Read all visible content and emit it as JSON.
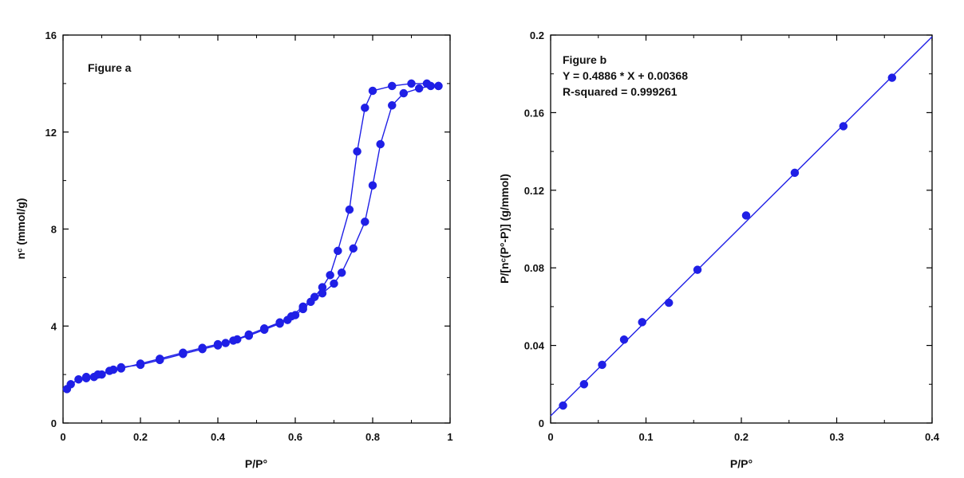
{
  "colors": {
    "series": "#1f1fe6",
    "axis": "#000000",
    "background": "#ffffff"
  },
  "chart_data": [
    {
      "type": "scatter",
      "panel": "Figure a",
      "title": "",
      "xlabel": "P/P°",
      "ylabel": "nᶜ (mmol/g)",
      "xlim": [
        0,
        1
      ],
      "ylim": [
        0,
        16
      ],
      "x_ticks": [
        0,
        0.2,
        0.4,
        0.6,
        0.8,
        1
      ],
      "x_tick_labels": [
        "0",
        "0.2",
        "0.4",
        "0.6",
        "0.8",
        "1"
      ],
      "y_ticks": [
        0,
        4,
        8,
        12,
        16
      ],
      "y_tick_labels": [
        "0",
        "4",
        "8",
        "12",
        "16"
      ],
      "grid": false,
      "annotations": [
        "Figure a"
      ],
      "series": [
        {
          "role": "adsorption",
          "marker": "filled-circle",
          "line": true,
          "x": [
            0.01,
            0.02,
            0.04,
            0.06,
            0.08,
            0.1,
            0.13,
            0.15,
            0.2,
            0.25,
            0.31,
            0.36,
            0.4,
            0.42,
            0.45,
            0.48,
            0.52,
            0.56,
            0.58,
            0.6,
            0.62,
            0.64,
            0.67,
            0.7,
            0.72,
            0.75,
            0.78,
            0.8,
            0.82,
            0.85,
            0.88,
            0.92,
            0.95,
            0.97
          ],
          "y": [
            1.4,
            1.6,
            1.8,
            1.9,
            1.9,
            2.0,
            2.2,
            2.3,
            2.4,
            2.6,
            2.85,
            3.05,
            3.2,
            3.3,
            3.45,
            3.6,
            3.85,
            4.1,
            4.25,
            4.45,
            4.7,
            5.0,
            5.35,
            5.75,
            6.2,
            7.2,
            8.3,
            9.8,
            11.5,
            13.1,
            13.6,
            13.8,
            13.9,
            13.9
          ]
        },
        {
          "role": "desorption",
          "marker": "filled-circle",
          "line": true,
          "x": [
            0.97,
            0.94,
            0.9,
            0.85,
            0.8,
            0.78,
            0.76,
            0.74,
            0.71,
            0.69,
            0.67,
            0.65,
            0.62,
            0.59,
            0.56,
            0.52,
            0.48,
            0.44,
            0.4,
            0.36,
            0.31,
            0.25,
            0.2,
            0.15,
            0.12,
            0.09,
            0.06
          ],
          "y": [
            13.9,
            14.0,
            14.0,
            13.9,
            13.7,
            13.0,
            11.2,
            8.8,
            7.1,
            6.1,
            5.6,
            5.2,
            4.8,
            4.4,
            4.15,
            3.9,
            3.65,
            3.4,
            3.25,
            3.1,
            2.9,
            2.65,
            2.45,
            2.25,
            2.15,
            2.0,
            1.85
          ]
        }
      ]
    },
    {
      "type": "scatter",
      "panel": "Figure b",
      "title": "",
      "xlabel": "P/P°",
      "ylabel": "P/[nᶜ(P°-P)] (g/mmol)",
      "xlim": [
        0,
        0.4
      ],
      "ylim": [
        0,
        0.2
      ],
      "x_ticks": [
        0,
        0.1,
        0.2,
        0.3,
        0.4
      ],
      "x_tick_labels": [
        "0",
        "0.1",
        "0.2",
        "0.3",
        "0.4"
      ],
      "y_ticks": [
        0,
        0.04,
        0.08,
        0.12,
        0.16,
        0.2
      ],
      "y_tick_labels": [
        "0",
        "0.04",
        "0.08",
        "0.12",
        "0.16",
        "0.2"
      ],
      "grid": false,
      "annotations": [
        "Figure b",
        "Y = 0.4886 * X + 0.00368",
        "R-squared = 0.999261"
      ],
      "fit": {
        "slope": 0.4886,
        "intercept": 0.00368
      },
      "series": [
        {
          "marker": "filled-circle",
          "line": false,
          "x": [
            0.013,
            0.035,
            0.054,
            0.077,
            0.096,
            0.124,
            0.154,
            0.205,
            0.256,
            0.307,
            0.358
          ],
          "y": [
            0.009,
            0.02,
            0.03,
            0.043,
            0.052,
            0.062,
            0.079,
            0.107,
            0.129,
            0.153,
            0.178
          ]
        }
      ]
    }
  ]
}
